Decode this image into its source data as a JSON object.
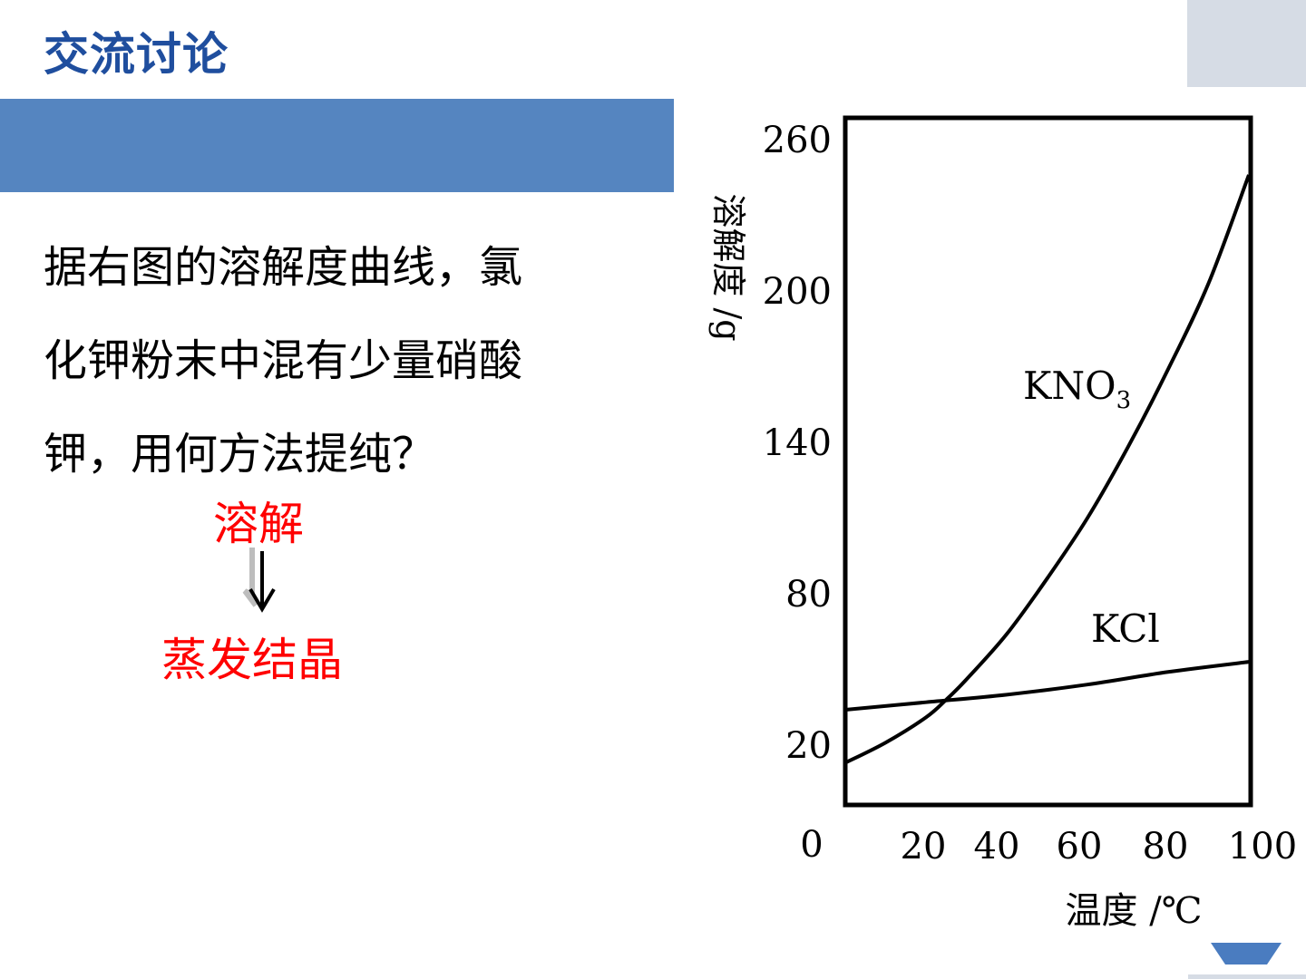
{
  "slide": {
    "title": "交流讨论",
    "question_lines": [
      "据右图的溶解度曲线，氯",
      "化钾粉末中混有少量硝酸",
      "钾，用何方法提纯？"
    ],
    "steps": {
      "first": "溶解",
      "second": "蒸发结晶"
    }
  },
  "colors": {
    "title": "#1f4e9e",
    "banner": "#5585c0",
    "answer": "#ff0000"
  },
  "chart_data": {
    "type": "line",
    "ylabel": "溶解度 /g",
    "xlabel": "温度 /℃",
    "y_ticks": [
      "260",
      "200",
      "140",
      "80",
      "20"
    ],
    "y_tick_values": [
      260,
      200,
      140,
      80,
      20
    ],
    "x_ticks": [
      "20",
      "40",
      "60",
      "80",
      "100"
    ],
    "x_tick_values": [
      20,
      40,
      60,
      80,
      100
    ],
    "origin_label": "0",
    "series": [
      {
        "name": "KNO3",
        "label_main": "KNO",
        "label_sub": "3",
        "x": [
          0,
          10,
          20,
          25,
          30,
          40,
          50,
          60,
          70,
          80,
          90,
          100
        ],
        "values": [
          13,
          21,
          31,
          38,
          46,
          64,
          86,
          110,
          138,
          169,
          203,
          246
        ]
      },
      {
        "name": "KCl",
        "label_main": "KCl",
        "label_sub": "",
        "x": [
          0,
          20,
          40,
          60,
          80,
          100
        ],
        "values": [
          34,
          37,
          40,
          44,
          49,
          53
        ]
      }
    ]
  }
}
